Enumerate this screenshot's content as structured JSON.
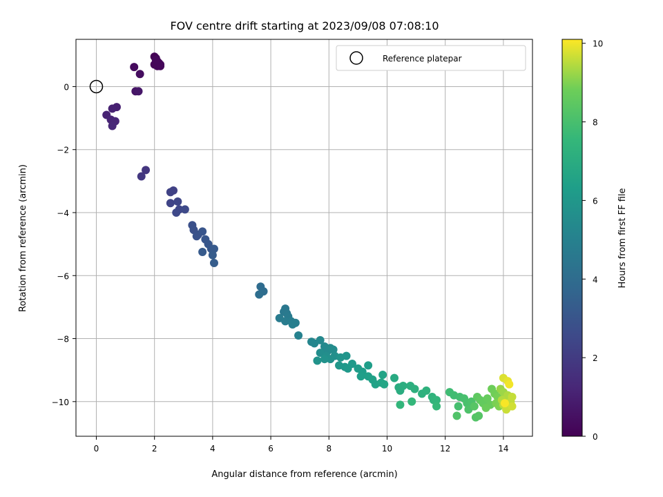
{
  "chart_data": {
    "type": "scatter",
    "title": "FOV centre drift starting at 2023/09/08 07:08:10",
    "xlabel": "Angular distance from reference (arcmin)",
    "ylabel": "Rotation from reference (arcmin)",
    "xlim": [
      -0.7,
      15.0
    ],
    "ylim": [
      -11.1,
      1.5
    ],
    "xticks": [
      0,
      2,
      4,
      6,
      8,
      10,
      12,
      14
    ],
    "yticks": [
      0,
      -2,
      -4,
      -6,
      -8,
      -10
    ],
    "grid": true,
    "legend": {
      "position": "top-right",
      "entries": [
        "Reference platepar"
      ]
    },
    "reference_point": {
      "x": 0,
      "y": 0,
      "label": "Reference platepar"
    },
    "colorbar": {
      "label": "Hours from first FF file",
      "colormap": "viridis",
      "range": [
        0,
        10.1
      ],
      "ticks": [
        0,
        2,
        4,
        6,
        8,
        10
      ]
    },
    "series": [
      {
        "points": [
          [
            2.0,
            0.95,
            0.05
          ],
          [
            2.05,
            0.9,
            0.08
          ],
          [
            2.1,
            0.8,
            0.1
          ],
          [
            2.15,
            0.75,
            0.12
          ],
          [
            2.2,
            0.7,
            0.14
          ],
          [
            2.0,
            0.7,
            0.16
          ],
          [
            2.1,
            0.65,
            0.18
          ],
          [
            2.2,
            0.65,
            0.2
          ],
          [
            2.05,
            0.85,
            0.22
          ],
          [
            1.3,
            0.62,
            0.3
          ],
          [
            1.5,
            0.4,
            0.4
          ],
          [
            1.35,
            -0.15,
            0.6
          ],
          [
            1.45,
            -0.15,
            0.7
          ],
          [
            0.7,
            -0.65,
            1.0
          ],
          [
            0.55,
            -0.7,
            1.05
          ],
          [
            0.35,
            -0.9,
            1.1
          ],
          [
            0.5,
            -1.05,
            1.15
          ],
          [
            0.65,
            -1.1,
            1.2
          ],
          [
            0.55,
            -1.25,
            1.25
          ],
          [
            1.7,
            -2.65,
            1.8
          ],
          [
            1.55,
            -2.85,
            1.85
          ],
          [
            2.65,
            -3.3,
            2.2
          ],
          [
            2.55,
            -3.35,
            2.25
          ],
          [
            2.55,
            -3.7,
            2.35
          ],
          [
            2.8,
            -3.65,
            2.4
          ],
          [
            2.85,
            -3.9,
            2.45
          ],
          [
            2.75,
            -4.0,
            2.5
          ],
          [
            3.05,
            -3.9,
            2.55
          ],
          [
            3.3,
            -4.4,
            2.8
          ],
          [
            3.35,
            -4.55,
            2.85
          ],
          [
            3.5,
            -4.7,
            2.9
          ],
          [
            3.45,
            -4.75,
            2.95
          ],
          [
            3.65,
            -4.6,
            3.0
          ],
          [
            3.75,
            -4.85,
            3.05
          ],
          [
            3.85,
            -5.0,
            3.1
          ],
          [
            3.95,
            -5.15,
            3.15
          ],
          [
            4.05,
            -5.15,
            3.2
          ],
          [
            3.65,
            -5.25,
            3.25
          ],
          [
            4.0,
            -5.35,
            3.3
          ],
          [
            4.05,
            -5.6,
            3.35
          ],
          [
            5.65,
            -6.35,
            4.0
          ],
          [
            5.75,
            -6.5,
            4.05
          ],
          [
            5.6,
            -6.6,
            4.1
          ],
          [
            6.5,
            -7.05,
            4.5
          ],
          [
            6.45,
            -7.15,
            4.55
          ],
          [
            6.55,
            -7.2,
            4.6
          ],
          [
            6.6,
            -7.3,
            4.65
          ],
          [
            6.3,
            -7.35,
            4.7
          ],
          [
            6.5,
            -7.45,
            4.75
          ],
          [
            6.7,
            -7.45,
            4.8
          ],
          [
            6.85,
            -7.5,
            4.85
          ],
          [
            6.75,
            -7.55,
            4.9
          ],
          [
            6.95,
            -7.9,
            5.0
          ],
          [
            7.4,
            -8.1,
            5.2
          ],
          [
            7.5,
            -8.15,
            5.25
          ],
          [
            7.7,
            -8.05,
            5.3
          ],
          [
            7.85,
            -8.25,
            5.35
          ],
          [
            7.95,
            -8.4,
            5.4
          ],
          [
            8.05,
            -8.3,
            5.45
          ],
          [
            8.15,
            -8.35,
            5.5
          ],
          [
            7.7,
            -8.45,
            5.55
          ],
          [
            7.9,
            -8.55,
            5.6
          ],
          [
            8.2,
            -8.55,
            5.65
          ],
          [
            8.05,
            -8.65,
            5.7
          ],
          [
            7.85,
            -8.65,
            5.75
          ],
          [
            7.6,
            -8.7,
            5.8
          ],
          [
            8.4,
            -8.6,
            5.85
          ],
          [
            8.6,
            -8.55,
            5.9
          ],
          [
            8.35,
            -8.85,
            6.0
          ],
          [
            8.55,
            -8.9,
            6.05
          ],
          [
            8.65,
            -8.95,
            6.1
          ],
          [
            8.8,
            -8.8,
            6.15
          ],
          [
            9.0,
            -8.95,
            6.2
          ],
          [
            9.15,
            -9.05,
            6.25
          ],
          [
            9.35,
            -8.85,
            6.3
          ],
          [
            9.1,
            -9.2,
            6.35
          ],
          [
            9.35,
            -9.2,
            6.4
          ],
          [
            9.5,
            -9.3,
            6.45
          ],
          [
            9.6,
            -9.45,
            6.5
          ],
          [
            9.85,
            -9.15,
            6.55
          ],
          [
            9.8,
            -9.4,
            6.6
          ],
          [
            9.9,
            -9.45,
            6.65
          ],
          [
            10.25,
            -9.25,
            6.9
          ],
          [
            10.4,
            -9.55,
            6.95
          ],
          [
            10.45,
            -9.65,
            7.0
          ],
          [
            10.55,
            -9.5,
            7.05
          ],
          [
            10.8,
            -9.5,
            7.1
          ],
          [
            10.95,
            -9.6,
            7.15
          ],
          [
            11.2,
            -9.75,
            7.2
          ],
          [
            11.35,
            -9.65,
            7.25
          ],
          [
            11.55,
            -9.85,
            7.3
          ],
          [
            11.6,
            -9.95,
            7.35
          ],
          [
            11.7,
            -9.95,
            7.4
          ],
          [
            10.45,
            -10.1,
            7.45
          ],
          [
            10.85,
            -10.0,
            7.5
          ],
          [
            11.7,
            -10.15,
            7.55
          ],
          [
            12.15,
            -9.7,
            7.8
          ],
          [
            12.3,
            -9.8,
            7.85
          ],
          [
            12.5,
            -9.85,
            7.9
          ],
          [
            12.45,
            -10.15,
            7.95
          ],
          [
            12.65,
            -9.9,
            8.0
          ],
          [
            12.75,
            -10.05,
            8.05
          ],
          [
            12.9,
            -10.0,
            8.1
          ],
          [
            12.8,
            -10.25,
            8.15
          ],
          [
            12.4,
            -10.45,
            8.2
          ],
          [
            13.05,
            -10.5,
            8.25
          ],
          [
            13.15,
            -10.45,
            8.3
          ],
          [
            13.0,
            -10.15,
            8.35
          ],
          [
            13.1,
            -9.85,
            8.5
          ],
          [
            13.2,
            -9.95,
            8.55
          ],
          [
            13.3,
            -10.05,
            8.6
          ],
          [
            13.45,
            -9.9,
            8.65
          ],
          [
            13.55,
            -10.1,
            8.7
          ],
          [
            13.4,
            -10.2,
            8.75
          ],
          [
            13.6,
            -9.6,
            8.8
          ],
          [
            13.7,
            -9.75,
            8.85
          ],
          [
            13.8,
            -9.85,
            8.9
          ],
          [
            13.75,
            -10.05,
            8.95
          ],
          [
            13.85,
            -10.15,
            9.0
          ],
          [
            13.9,
            -9.6,
            9.2
          ],
          [
            14.0,
            -9.7,
            9.25
          ],
          [
            14.05,
            -9.9,
            9.3
          ],
          [
            14.1,
            -10.0,
            9.35
          ],
          [
            14.15,
            -9.8,
            9.4
          ],
          [
            13.95,
            -9.95,
            9.45
          ],
          [
            14.0,
            -10.1,
            9.5
          ],
          [
            14.25,
            -10.0,
            9.55
          ],
          [
            14.3,
            -9.85,
            9.6
          ],
          [
            14.1,
            -10.25,
            9.65
          ],
          [
            14.3,
            -10.15,
            9.7
          ],
          [
            14.0,
            -9.25,
            9.8
          ],
          [
            14.15,
            -9.35,
            9.9
          ],
          [
            14.2,
            -9.45,
            10.0
          ],
          [
            14.05,
            -10.05,
            10.05
          ]
        ]
      }
    ]
  }
}
